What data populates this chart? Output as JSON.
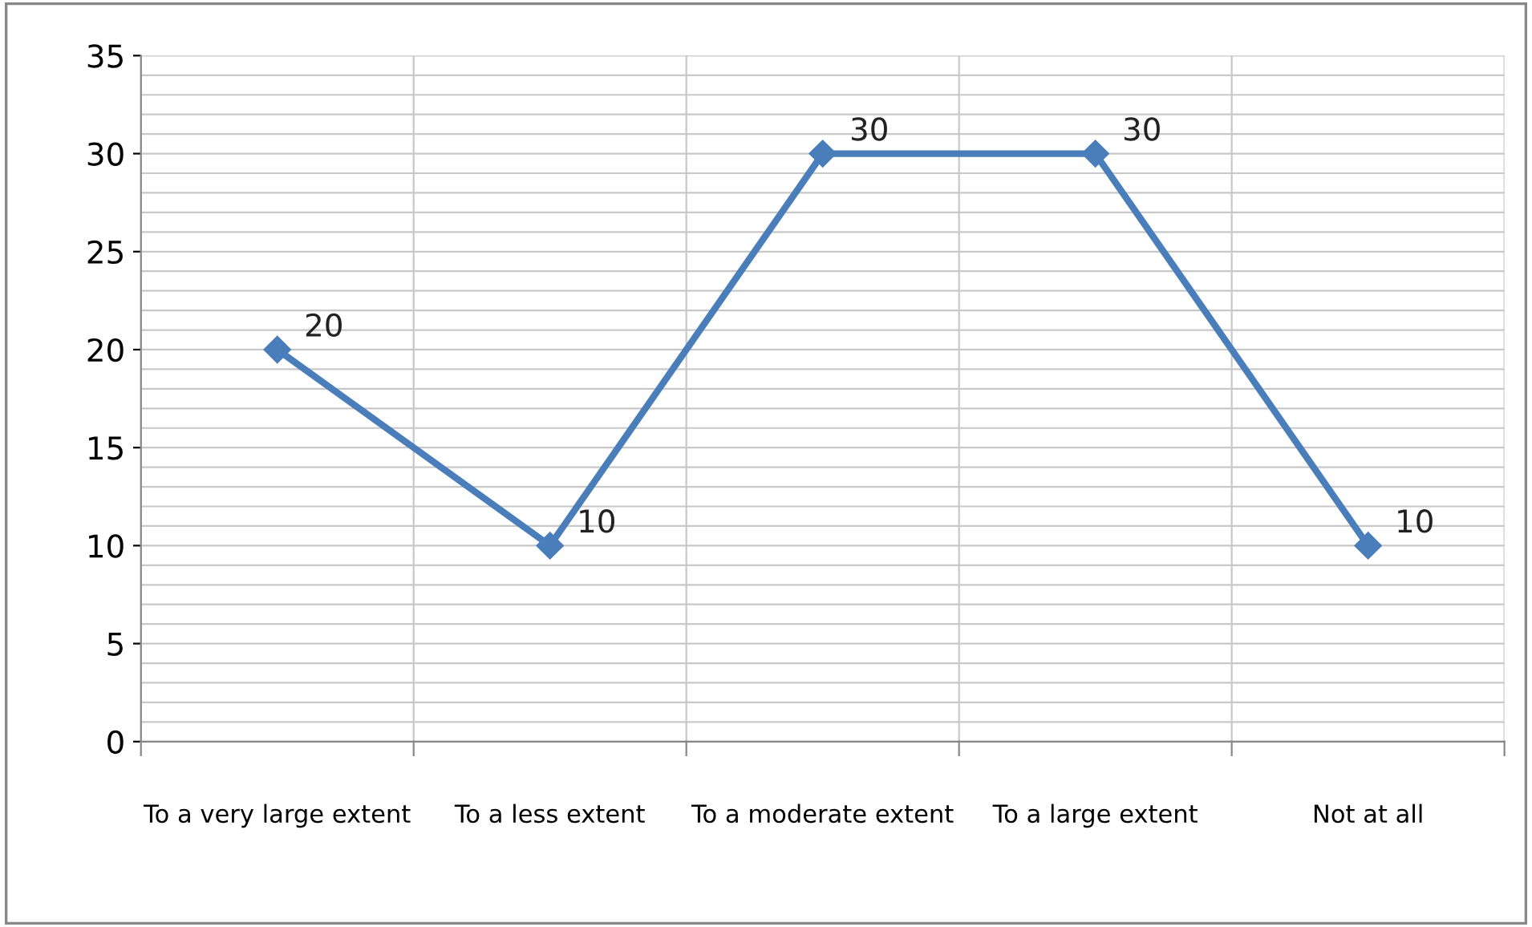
{
  "chart_data": {
    "type": "line",
    "categories": [
      "To a very large extent",
      "To a less extent",
      "To a moderate extent",
      "To a large extent",
      "Not at all"
    ],
    "series": [
      {
        "color": "#4a7ebb",
        "values": [
          20,
          10,
          30,
          30,
          10
        ]
      }
    ],
    "ylim": [
      0,
      35
    ],
    "yticks": [
      0,
      5,
      10,
      15,
      20,
      25,
      30,
      35
    ],
    "grid": true,
    "legend": false,
    "marker": "diamond",
    "line_style": "solid",
    "data_labels": true
  }
}
